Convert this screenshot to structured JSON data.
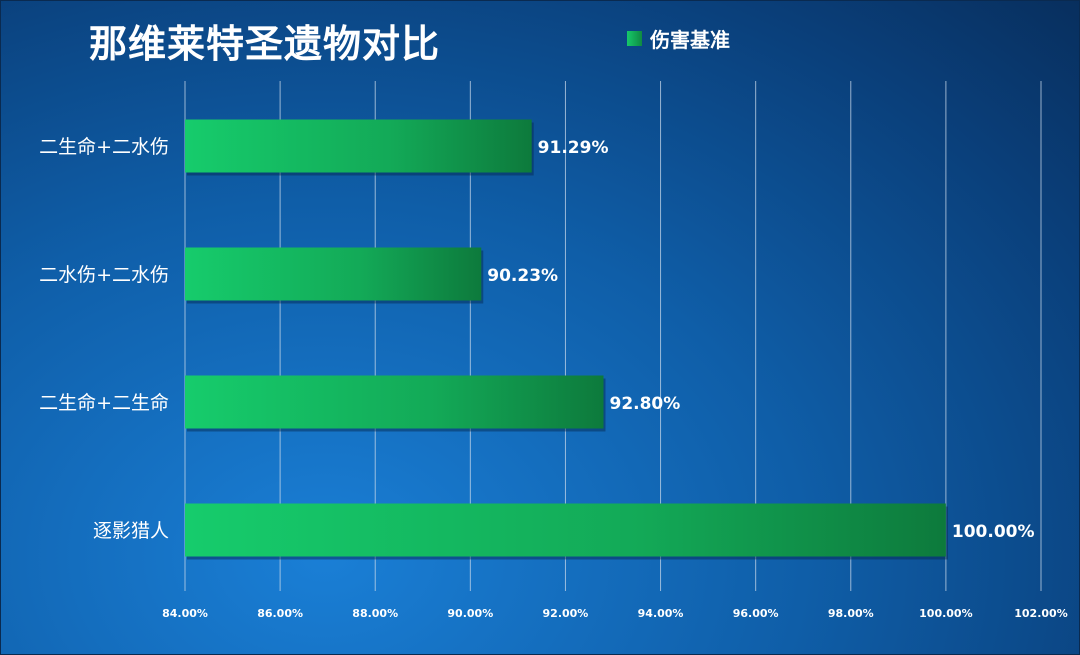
{
  "chart_data": {
    "type": "bar",
    "orientation": "horizontal",
    "title": "那维莱特圣遗物对比",
    "legend": {
      "label": "伤害基准",
      "color": "#14b85e",
      "position": "top"
    },
    "categories": [
      "二生命+二水伤",
      "二水伤+二水伤",
      "二生命+二生命",
      "逐影猎人"
    ],
    "series": [
      {
        "name": "伤害基准",
        "values": [
          91.29,
          90.23,
          92.8,
          100.0
        ]
      }
    ],
    "value_labels": [
      "91.29%",
      "90.23%",
      "92.80%",
      "100.00%"
    ],
    "xlim": [
      84,
      102
    ],
    "x_ticks": [
      "84.00%",
      "86.00%",
      "88.00%",
      "90.00%",
      "92.00%",
      "94.00%",
      "96.00%",
      "98.00%",
      "100.00%",
      "102.00%"
    ],
    "grid": true,
    "colors": {
      "bar_start": "#16cc6c",
      "bar_end": "#0d7a3c",
      "grid": "#c8d8ea",
      "text": "#ffffff"
    }
  }
}
